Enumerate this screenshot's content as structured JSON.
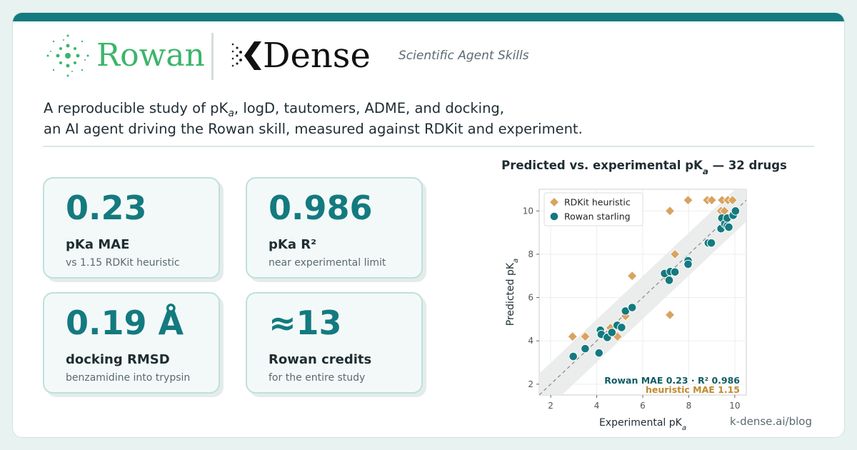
{
  "header": {
    "brand_left": "Rowan",
    "brand_right": "Dense",
    "tagline": "Scientific Agent Skills"
  },
  "intro": {
    "line1": [
      "A reproducible study of pK",
      "a",
      ", logD, tautomers, ADME, and docking,"
    ],
    "line2": "an AI agent driving the Rowan skill, measured against RDKit and experiment."
  },
  "stats": [
    {
      "value": "0.23",
      "label": "pKa MAE",
      "sub": "vs 1.15 RDKit heuristic"
    },
    {
      "value": "0.986",
      "label": "pKa R²",
      "sub": "near experimental limit"
    },
    {
      "value": "0.19 Å",
      "label": "docking RMSD",
      "sub": "benzamidine into trypsin"
    },
    {
      "value": "≈13",
      "label": "Rowan credits",
      "sub": "for the entire study"
    }
  ],
  "footer": "k-dense.ai/blog",
  "chart_data": {
    "type": "scatter",
    "title": [
      "Predicted vs. experimental pK",
      "a",
      "  —  32 drugs"
    ],
    "x_label": [
      "Experimental pK",
      "a"
    ],
    "y_label": [
      "Predicted pK",
      "a"
    ],
    "xlim": [
      1.5,
      10.5
    ],
    "ylim": [
      1.5,
      11
    ],
    "xticks": [
      2,
      4,
      6,
      8,
      10
    ],
    "yticks": [
      2,
      4,
      6,
      8,
      10
    ],
    "grid": true,
    "legend": "upper left",
    "annotations": [
      "Rowan MAE 0.23  ·  R² 0.986",
      "heuristic MAE 1.15"
    ],
    "series": [
      {
        "name": "RDKit heuristic",
        "color": "#d9a35f",
        "marker": "diamond",
        "x": [
          2.95,
          3.5,
          5.54,
          7.18,
          7.18,
          7.4,
          7.97,
          8.8,
          9.0,
          9.4,
          9.45,
          9.55,
          9.7,
          9.9,
          5.25,
          4.9,
          4.6,
          7.0
        ],
        "values": [
          4.2,
          4.2,
          7.0,
          10,
          5.2,
          8.0,
          10.5,
          10.5,
          10.5,
          10,
          10.5,
          10,
          10.5,
          10.5,
          5.15,
          4.2,
          4.6,
          6.95
        ]
      },
      {
        "name": "Rowan starling",
        "color": "#137a7f",
        "marker": "circle",
        "x": [
          2.98,
          3.5,
          4.1,
          4.16,
          4.2,
          4.46,
          4.66,
          4.89,
          5.08,
          5.25,
          5.54,
          6.95,
          7.15,
          7.2,
          7.4,
          7.97,
          7.97,
          8.85,
          8.98,
          9.4,
          9.44,
          9.57,
          9.67,
          9.67,
          9.74,
          9.93,
          10.03
        ],
        "values": [
          3.28,
          3.64,
          3.44,
          4.49,
          4.3,
          4.16,
          4.39,
          4.72,
          4.62,
          5.38,
          5.54,
          7.11,
          6.8,
          7.2,
          7.18,
          7.7,
          7.54,
          8.52,
          8.52,
          9.18,
          9.67,
          9.41,
          9.31,
          9.67,
          9.25,
          9.8,
          10.0
        ]
      }
    ]
  }
}
